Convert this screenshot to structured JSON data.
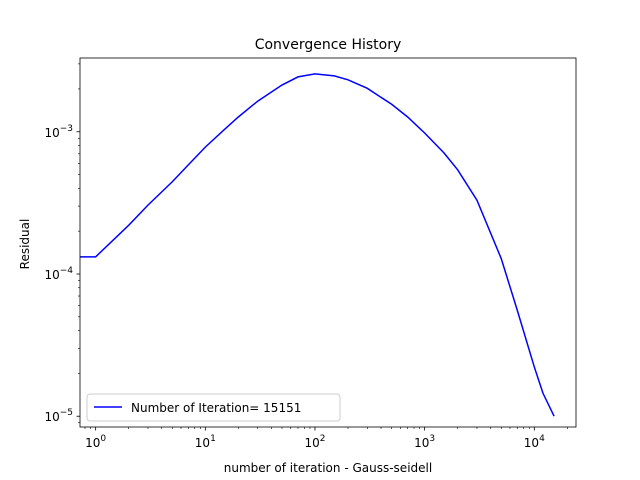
{
  "chart_data": {
    "type": "line",
    "title": "Convergence History",
    "xlabel": "number of iteration - Gauss-seidell",
    "ylabel": "Residual",
    "xscale": "log",
    "yscale": "log",
    "xlim": [
      0.72,
      24000
    ],
    "ylim": [
      8.4e-06,
      0.0033
    ],
    "grid": false,
    "legend_position": "lower-left",
    "x_ticks": [
      {
        "value": 1,
        "base": "10",
        "exp": "0"
      },
      {
        "value": 10,
        "base": "10",
        "exp": "1"
      },
      {
        "value": 100,
        "base": "10",
        "exp": "2"
      },
      {
        "value": 1000,
        "base": "10",
        "exp": "3"
      },
      {
        "value": 10000,
        "base": "10",
        "exp": "4"
      }
    ],
    "y_ticks": [
      {
        "value": 1e-05,
        "base": "10",
        "exp": "−5"
      },
      {
        "value": 0.0001,
        "base": "10",
        "exp": "−4"
      },
      {
        "value": 0.001,
        "base": "10",
        "exp": "−3"
      }
    ],
    "series": [
      {
        "name": "Number of Iteration= 15151",
        "color": "#0000ff",
        "x": [
          0,
          1,
          2,
          3,
          5,
          7,
          10,
          15,
          20,
          30,
          50,
          70,
          100,
          150,
          200,
          300,
          500,
          700,
          1000,
          1500,
          2000,
          3000,
          5000,
          7000,
          10000,
          12000,
          15151
        ],
        "y": [
          0.000132,
          0.000132,
          0.00022,
          0.000305,
          0.000445,
          0.000585,
          0.00078,
          0.00104,
          0.00127,
          0.00164,
          0.00213,
          0.00243,
          0.00255,
          0.00247,
          0.00232,
          0.00202,
          0.00156,
          0.00127,
          0.00098,
          0.00071,
          0.00054,
          0.00033,
          0.000128,
          5.55e-05,
          2.22e-05,
          1.45e-05,
          1e-05
        ]
      }
    ]
  }
}
